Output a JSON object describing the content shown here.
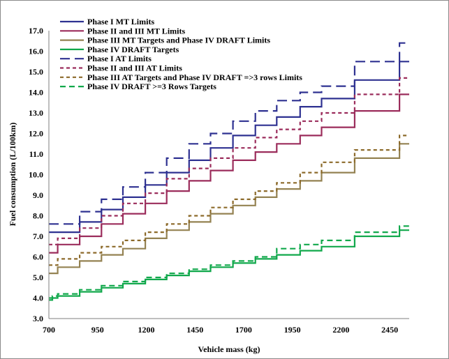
{
  "chart_data": {
    "type": "line",
    "title": "",
    "xlabel": "Vehicle mass (kg)",
    "ylabel": "Fuel consumption (L/100km)",
    "xlim": [
      700,
      2550
    ],
    "ylim": [
      3.0,
      17.0
    ],
    "x_ticks": [
      700,
      950,
      1200,
      1450,
      1700,
      1950,
      2200,
      2450
    ],
    "y_ticks": [
      3.0,
      4.0,
      5.0,
      6.0,
      7.0,
      8.0,
      9.0,
      10.0,
      11.0,
      12.0,
      13.0,
      14.0,
      15.0,
      16.0,
      17.0
    ],
    "grid": false,
    "legend_position": "top-left",
    "series": [
      {
        "name": "Phase I MT Limits",
        "color": "#2e3191",
        "dash": "solid",
        "x": [
          700,
          858,
          970,
          1080,
          1195,
          1305,
          1420,
          1530,
          1645,
          1760,
          1870,
          1990,
          2100,
          2270,
          2500
        ],
        "y": [
          7.2,
          7.7,
          8.3,
          8.9,
          9.5,
          10.1,
          10.7,
          11.3,
          11.9,
          12.4,
          12.8,
          13.3,
          13.7,
          14.6,
          15.5
        ]
      },
      {
        "name": "Phase II and III MT Limits",
        "color": "#9b2c5b",
        "dash": "solid",
        "x": [
          700,
          745,
          858,
          970,
          1080,
          1195,
          1305,
          1420,
          1530,
          1645,
          1760,
          1870,
          1990,
          2100,
          2270,
          2500
        ],
        "y": [
          6.2,
          6.6,
          7.0,
          7.6,
          8.1,
          8.6,
          9.2,
          9.7,
          10.2,
          10.7,
          11.1,
          11.5,
          11.9,
          12.3,
          13.1,
          13.9
        ]
      },
      {
        "name": "Phase III MT Targets and Phase IV DRAFT Limits",
        "color": "#948252",
        "dash": "solid",
        "x": [
          700,
          745,
          858,
          970,
          1080,
          1195,
          1305,
          1420,
          1530,
          1645,
          1760,
          1870,
          1990,
          2100,
          2270,
          2500
        ],
        "y": [
          5.2,
          5.5,
          5.8,
          6.1,
          6.4,
          6.9,
          7.3,
          7.7,
          8.1,
          8.5,
          8.9,
          9.3,
          9.7,
          10.1,
          10.8,
          11.5
        ]
      },
      {
        "name": "Phase IV DRAFT Targets",
        "color": "#10a84b",
        "dash": "solid",
        "x": [
          700,
          718,
          745,
          858,
          970,
          1080,
          1195,
          1305,
          1420,
          1530,
          1645,
          1760,
          1870,
          1990,
          2100,
          2270,
          2500
        ],
        "y": [
          3.9,
          4.0,
          4.1,
          4.3,
          4.5,
          4.7,
          4.9,
          5.1,
          5.3,
          5.5,
          5.7,
          5.9,
          6.1,
          6.3,
          6.5,
          7.0,
          7.3
        ]
      },
      {
        "name": "Phase I AT Limits",
        "color": "#2e3191",
        "dash": "long",
        "x": [
          700,
          858,
          970,
          1080,
          1195,
          1305,
          1420,
          1530,
          1645,
          1760,
          1870,
          1990,
          2100,
          2270,
          2500
        ],
        "y": [
          7.6,
          8.2,
          8.8,
          9.4,
          10.1,
          10.8,
          11.5,
          12.0,
          12.6,
          13.1,
          13.6,
          14.0,
          14.3,
          15.5,
          16.4
        ]
      },
      {
        "name": "Phase II and III AT Limits",
        "color": "#9b2c5b",
        "dash": "short",
        "x": [
          700,
          745,
          858,
          970,
          1080,
          1195,
          1305,
          1420,
          1530,
          1645,
          1760,
          1870,
          1990,
          2100,
          2270,
          2500
        ],
        "y": [
          6.6,
          6.9,
          7.4,
          8.0,
          8.6,
          9.1,
          9.8,
          10.3,
          10.8,
          11.3,
          11.8,
          12.2,
          12.6,
          13.0,
          13.9,
          14.7
        ]
      },
      {
        "name": "Phase III AT Targets and Phase IV DRAFT =>3 rows Limits",
        "color": "#8c6a2a",
        "dash": "short",
        "x": [
          700,
          745,
          858,
          970,
          1080,
          1195,
          1305,
          1420,
          1530,
          1645,
          1760,
          1870,
          1990,
          2100,
          2270,
          2500
        ],
        "y": [
          5.6,
          5.9,
          6.2,
          6.5,
          6.8,
          7.2,
          7.6,
          8.0,
          8.4,
          8.8,
          9.2,
          9.6,
          10.1,
          10.6,
          11.2,
          11.9
        ]
      },
      {
        "name": "Phase IV DRAFT >=3 Rows Targets",
        "color": "#10a84b",
        "dash": "medium",
        "x": [
          700,
          718,
          745,
          858,
          970,
          1080,
          1195,
          1305,
          1420,
          1530,
          1645,
          1760,
          1870,
          1990,
          2100,
          2270,
          2500
        ],
        "y": [
          4.0,
          4.1,
          4.2,
          4.4,
          4.6,
          4.8,
          5.0,
          5.2,
          5.4,
          5.6,
          5.8,
          6.0,
          6.4,
          6.6,
          6.8,
          7.2,
          7.5
        ]
      }
    ]
  }
}
